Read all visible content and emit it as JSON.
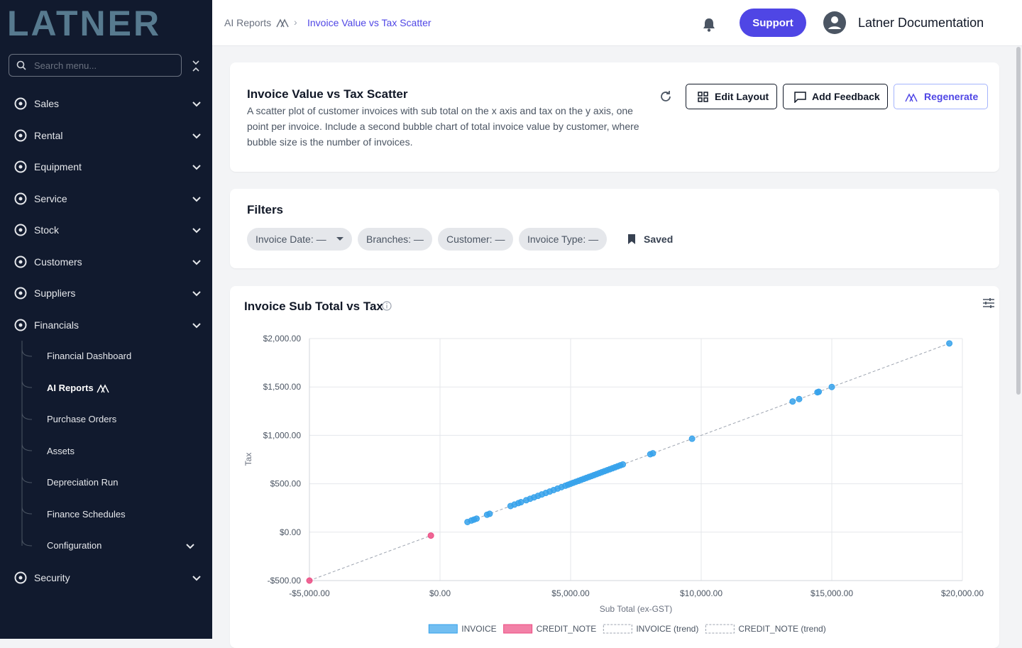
{
  "sidebar": {
    "logo": "LATNER",
    "search_placeholder": "Search menu...",
    "nav": [
      "Sales",
      "Rental",
      "Equipment",
      "Service",
      "Stock",
      "Customers",
      "Suppliers",
      "Financials"
    ],
    "financials_sub": [
      "Financial Dashboard",
      "AI Reports",
      "Purchase Orders",
      "Assets",
      "Depreciation Run",
      "Finance Schedules",
      "Configuration"
    ],
    "nav_after": [
      "Security"
    ]
  },
  "header": {
    "breadcrumb": [
      "AI Reports",
      "Invoice Value vs Tax Scatter"
    ],
    "support": "Support",
    "user": "Latner Documentation"
  },
  "report": {
    "title": "Invoice Value vs Tax Scatter",
    "description": "A scatter plot of customer invoices with sub total on the x axis and tax on the y axis, one point per invoice. Include a second bubble chart of total invoice value by customer, where bubble size is the number of invoices.",
    "buttons": [
      "Edit Layout",
      "Add Feedback",
      "Regenerate"
    ]
  },
  "filters": {
    "title": "Filters",
    "chips": [
      "Invoice Date: —",
      "Branches: —",
      "Customer: —",
      "Invoice Type: —"
    ],
    "saved": "Saved"
  },
  "chart_data": {
    "type": "scatter",
    "title": "Invoice Sub Total vs Tax",
    "x_label": "Sub Total (ex-GST)",
    "y_label": "Tax",
    "xlim": [
      -5000,
      20000
    ],
    "ylim": [
      -500,
      2000
    ],
    "xticks": [
      {
        "value": -5000,
        "label": "-$5,000.00"
      },
      {
        "value": 0,
        "label": "$0.00"
      },
      {
        "value": 5000,
        "label": "$5,000.00"
      },
      {
        "value": 10000,
        "label": "$10,000.00"
      },
      {
        "value": 15000,
        "label": "$15,000.00"
      },
      {
        "value": 20000,
        "label": "$20,000.00"
      }
    ],
    "yticks": [
      {
        "value": -500,
        "label": "-$500.00"
      },
      {
        "value": 0,
        "label": "$0.00"
      },
      {
        "value": 500,
        "label": "$500.00"
      },
      {
        "value": 1000,
        "label": "$1,000.00"
      },
      {
        "value": 1500,
        "label": "$1,500.00"
      },
      {
        "value": 2000,
        "label": "$2,000.00"
      }
    ],
    "grid": true,
    "series": [
      {
        "name": "INVOICE",
        "color": "#36a2eb",
        "trend_name": "INVOICE (trend)",
        "x": [
          1050,
          1200,
          1300,
          1400,
          1800,
          1900,
          2700,
          2850,
          3000,
          3100,
          3300,
          3450,
          3600,
          3750,
          3900,
          4050,
          4200,
          4350,
          4500,
          4650,
          4800,
          4900,
          5000,
          5100,
          5200,
          5300,
          5400,
          5500,
          5600,
          5700,
          5800,
          5900,
          6000,
          6100,
          6200,
          6300,
          6400,
          6500,
          6600,
          6700,
          6800,
          6900,
          7000,
          8050,
          8150,
          9650,
          13500,
          13750,
          14450,
          14500,
          15000,
          19500
        ],
        "values": [
          105,
          120,
          130,
          140,
          180,
          190,
          270,
          285,
          300,
          310,
          330,
          345,
          360,
          375,
          390,
          405,
          420,
          435,
          450,
          465,
          480,
          490,
          500,
          510,
          520,
          530,
          540,
          550,
          560,
          570,
          580,
          590,
          600,
          610,
          620,
          630,
          640,
          650,
          660,
          670,
          680,
          690,
          700,
          805,
          815,
          965,
          1350,
          1375,
          1445,
          1450,
          1500,
          1950
        ]
      },
      {
        "name": "CREDIT_NOTE",
        "color": "#ec4b82",
        "trend_name": "CREDIT_NOTE (trend)",
        "x": [
          -5000,
          -350
        ],
        "values": [
          -500,
          -35
        ]
      }
    ]
  }
}
